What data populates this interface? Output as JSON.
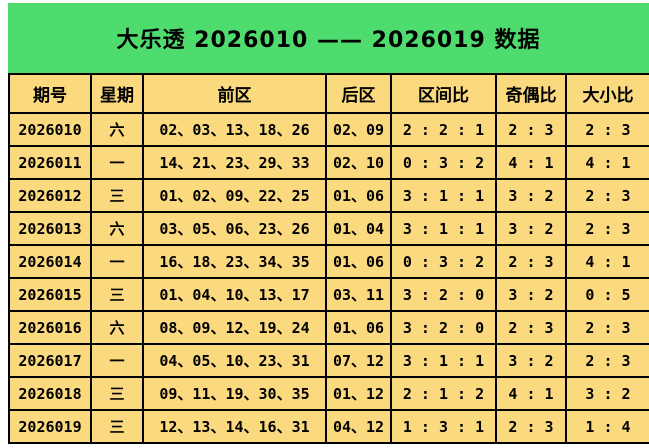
{
  "title": "大乐透 2026010 —— 2026019  数据",
  "colors": {
    "banner_green": "#4EDC6E",
    "cell_yellow": "#FBD97F",
    "front_zone_red": "#FF0000",
    "back_zone_blue": "#0080D8",
    "border_black": "#000000"
  },
  "chart_data": {
    "type": "table",
    "title": "大乐透 2026010 —— 2026019  数据",
    "columns": [
      "期号",
      "星期",
      "前区",
      "后区",
      "区间比",
      "奇偶比",
      "大小比"
    ],
    "column_keys": [
      "issue",
      "day",
      "front",
      "back",
      "interval",
      "odd-even",
      "big-small"
    ],
    "rows": [
      [
        "2026010",
        "六",
        "02、03、13、18、26",
        "02、09",
        "2 : 2 : 1",
        "2 : 3",
        "2 : 3"
      ],
      [
        "2026011",
        "一",
        "14、21、23、29、33",
        "02、10",
        "0 : 3 : 2",
        "4 : 1",
        "4 : 1"
      ],
      [
        "2026012",
        "三",
        "01、02、09、22、25",
        "01、06",
        "3 : 1 : 1",
        "3 : 2",
        "2 : 3"
      ],
      [
        "2026013",
        "六",
        "03、05、06、23、26",
        "01、04",
        "3 : 1 : 1",
        "3 : 2",
        "2 : 3"
      ],
      [
        "2026014",
        "一",
        "16、18、23、34、35",
        "01、06",
        "0 : 3 : 2",
        "2 : 3",
        "4 : 1"
      ],
      [
        "2026015",
        "三",
        "01、04、10、13、17",
        "03、11",
        "3 : 2 : 0",
        "3 : 2",
        "0 : 5"
      ],
      [
        "2026016",
        "六",
        "08、09、12、19、24",
        "01、06",
        "3 : 2 : 0",
        "2 : 3",
        "2 : 3"
      ],
      [
        "2026017",
        "一",
        "04、05、10、23、31",
        "07、12",
        "3 : 1 : 1",
        "3 : 2",
        "2 : 3"
      ],
      [
        "2026018",
        "三",
        "09、11、19、30、35",
        "01、12",
        "2 : 1 : 2",
        "4 : 1",
        "3 : 2"
      ],
      [
        "2026019",
        "三",
        "12、13、14、16、31",
        "04、12",
        "1 : 3 : 1",
        "2 : 3",
        "1 : 4"
      ]
    ]
  }
}
